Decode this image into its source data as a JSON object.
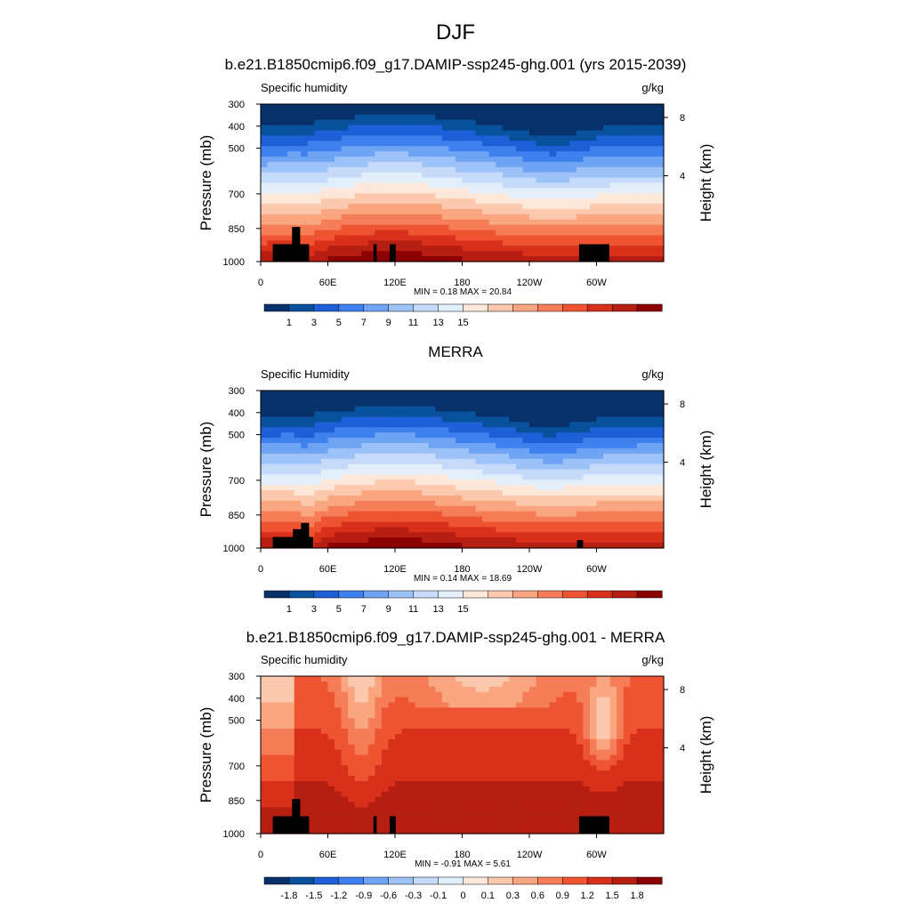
{
  "page_title": "DJF",
  "chart_data": [
    {
      "type": "heatmap",
      "title": "b.e21.B1850cmip6.f09_g17.DAMIP-ssp245-ghg.001 (yrs 2015-2039)",
      "variable_label": "Specific humidity",
      "units": "g/kg",
      "ylabel": "Pressure (mb)",
      "ylabel_right": "Height (km)",
      "x_ticks": [
        "0",
        "60E",
        "120E",
        "180",
        "120W",
        "60W"
      ],
      "y_ticks": [
        "300",
        "400",
        "500",
        "700",
        "850",
        "1000"
      ],
      "y_ticks_right": [
        "8",
        "4"
      ],
      "min_max_label": "MIN =   0.18  MAX =  20.84",
      "min": 0.18,
      "max": 20.84,
      "colorbar": {
        "labels": [
          "1",
          "3",
          "5",
          "7",
          "9",
          "11",
          "13",
          "15"
        ],
        "colors": [
          "#08306b",
          "#08519c",
          "#1c5fd6",
          "#3f80ef",
          "#6fa3f4",
          "#9dc2f7",
          "#c6dbf9",
          "#e3eefb",
          "#fde7d9",
          "#fcc9ae",
          "#f9a681",
          "#f57e58",
          "#ee5431",
          "#d8301b",
          "#b51e11",
          "#8b0000"
        ]
      }
    },
    {
      "type": "heatmap",
      "title": "MERRA",
      "variable_label": "Specific Humidity",
      "units": "g/kg",
      "ylabel": "Pressure (mb)",
      "ylabel_right": "Height (km)",
      "x_ticks": [
        "0",
        "60E",
        "120E",
        "180",
        "120W",
        "60W"
      ],
      "y_ticks": [
        "300",
        "400",
        "500",
        "700",
        "850",
        "1000"
      ],
      "y_ticks_right": [
        "8",
        "4"
      ],
      "min_max_label": "MIN =   0.14  MAX =  18.69",
      "min": 0.14,
      "max": 18.69,
      "colorbar": {
        "labels": [
          "1",
          "3",
          "5",
          "7",
          "9",
          "11",
          "13",
          "15"
        ],
        "colors": [
          "#08306b",
          "#08519c",
          "#1c5fd6",
          "#3f80ef",
          "#6fa3f4",
          "#9dc2f7",
          "#c6dbf9",
          "#e3eefb",
          "#fde7d9",
          "#fcc9ae",
          "#f9a681",
          "#f57e58",
          "#ee5431",
          "#d8301b",
          "#b51e11",
          "#8b0000"
        ]
      }
    },
    {
      "type": "heatmap",
      "title": "b.e21.B1850cmip6.f09_g17.DAMIP-ssp245-ghg.001 - MERRA",
      "variable_label": "Specific humidity",
      "units": "g/kg",
      "ylabel": "Pressure (mb)",
      "ylabel_right": "Height (km)",
      "x_ticks": [
        "0",
        "60E",
        "120E",
        "180",
        "120W",
        "60W"
      ],
      "y_ticks": [
        "300",
        "400",
        "500",
        "700",
        "850",
        "1000"
      ],
      "y_ticks_right": [
        "8",
        "4"
      ],
      "min_max_label": "MIN =  -0.91  MAX =   5.61",
      "min": -0.91,
      "max": 5.61,
      "colorbar": {
        "labels": [
          "-1.8",
          "-1.5",
          "-1.2",
          "-0.9",
          "-0.6",
          "-0.3",
          "-0.1",
          "0",
          "0.1",
          "0.3",
          "0.6",
          "0.9",
          "1.2",
          "1.5",
          "1.8"
        ],
        "colors": [
          "#08306b",
          "#08519c",
          "#1c5fd6",
          "#3f80ef",
          "#6fa3f4",
          "#9dc2f7",
          "#c6dbf9",
          "#e3eefb",
          "#fde7d9",
          "#fcc9ae",
          "#f9a681",
          "#f57e58",
          "#ee5431",
          "#d8301b",
          "#b51e11",
          "#8b0000"
        ]
      }
    }
  ]
}
